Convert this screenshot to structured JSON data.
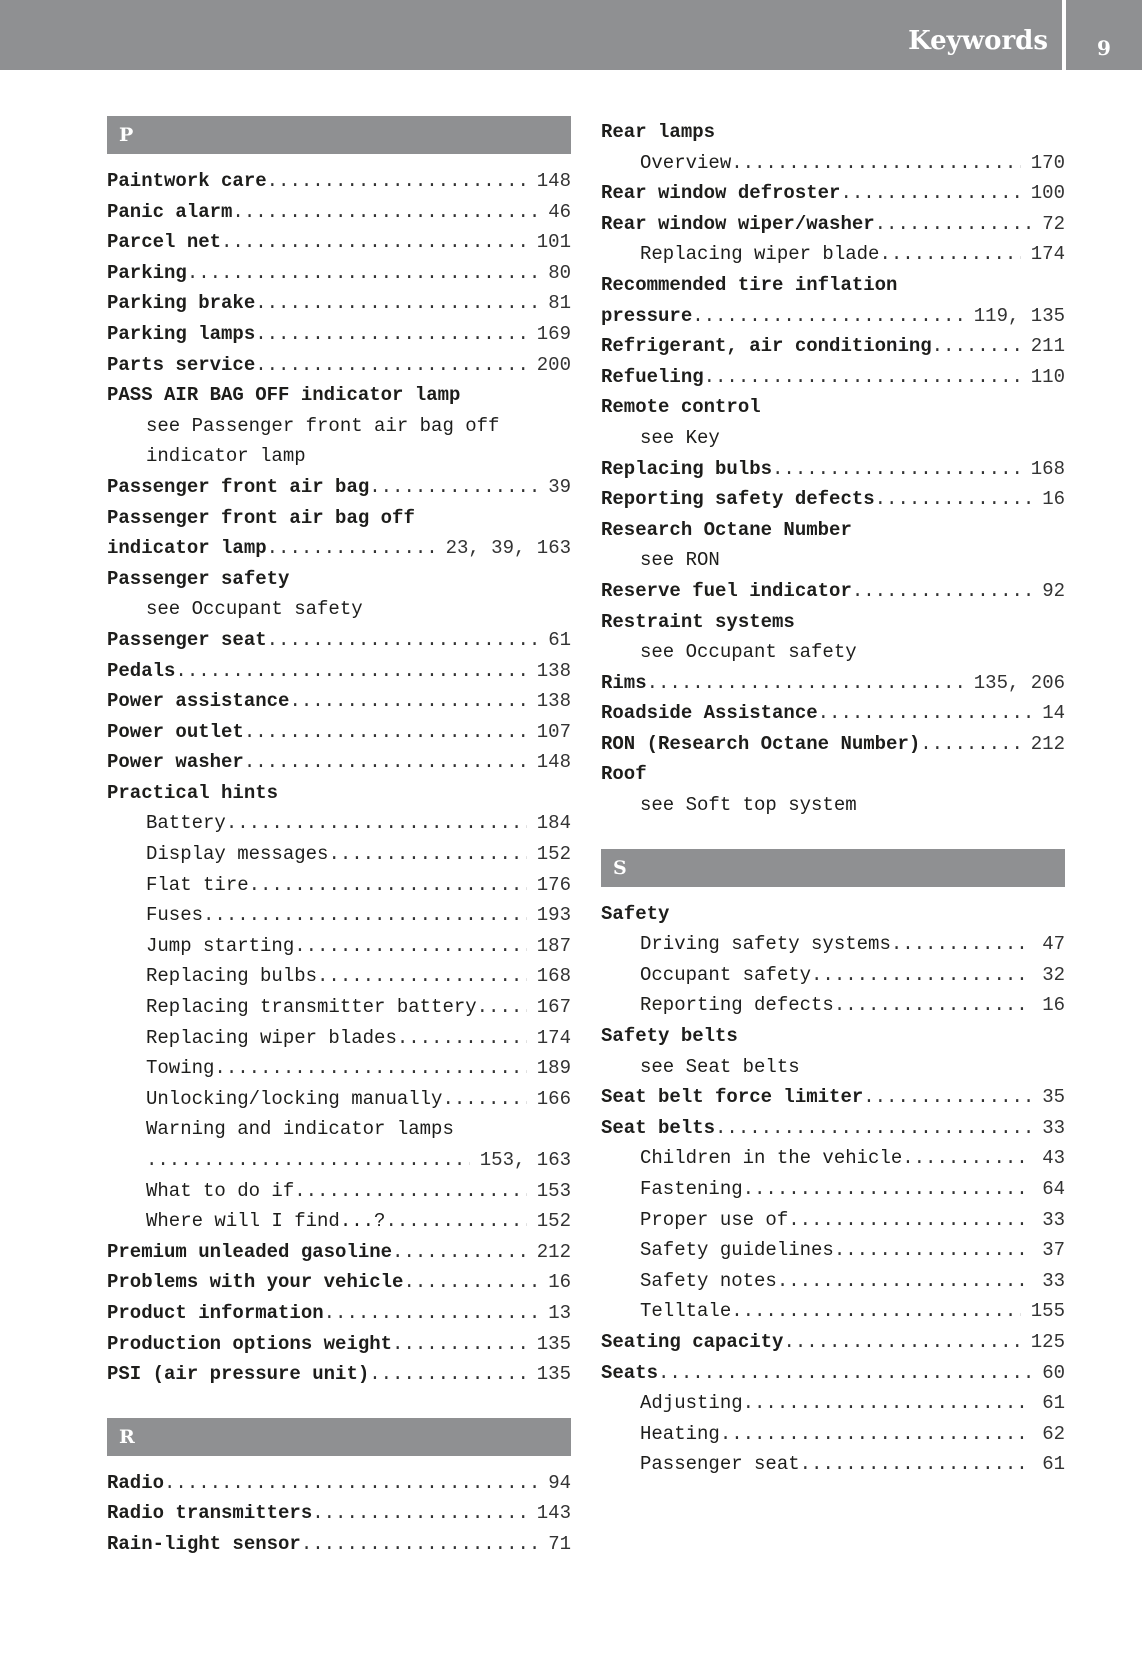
{
  "header": {
    "title": "Keywords",
    "page_number": "9"
  },
  "columns": [
    [
      {
        "t": "sec",
        "text": "P"
      },
      {
        "t": "main",
        "text": "Paintwork care",
        "page": "148"
      },
      {
        "t": "main",
        "text": "Panic alarm",
        "page": "46"
      },
      {
        "t": "main",
        "text": "Parcel net",
        "page": "101"
      },
      {
        "t": "main",
        "text": "Parking",
        "page": "80"
      },
      {
        "t": "main",
        "text": "Parking brake",
        "page": "81"
      },
      {
        "t": "main",
        "text": "Parking lamps",
        "page": "169"
      },
      {
        "t": "main",
        "text": "Parts service",
        "page": "200"
      },
      {
        "t": "main",
        "text": "PASS AIR BAG OFF indicator lamp"
      },
      {
        "t": "sub",
        "text": "see Passenger front air bag off"
      },
      {
        "t": "sub",
        "text": "indicator lamp"
      },
      {
        "t": "main",
        "text": "Passenger front air bag",
        "page": "39"
      },
      {
        "t": "main",
        "text": "Passenger front air bag off"
      },
      {
        "t": "main",
        "text": "indicator lamp",
        "page": "23, 39, 163"
      },
      {
        "t": "main",
        "text": "Passenger safety"
      },
      {
        "t": "sub",
        "text": "see Occupant safety"
      },
      {
        "t": "main",
        "text": "Passenger seat",
        "page": "61"
      },
      {
        "t": "main",
        "text": "Pedals",
        "page": "138"
      },
      {
        "t": "main",
        "text": "Power assistance",
        "page": "138"
      },
      {
        "t": "main",
        "text": "Power outlet",
        "page": "107"
      },
      {
        "t": "main",
        "text": "Power washer",
        "page": "148"
      },
      {
        "t": "main",
        "text": "Practical hints"
      },
      {
        "t": "sub",
        "text": "Battery",
        "page": "184"
      },
      {
        "t": "sub",
        "text": "Display messages",
        "page": "152"
      },
      {
        "t": "sub",
        "text": "Flat tire",
        "page": "176"
      },
      {
        "t": "sub",
        "text": "Fuses",
        "page": "193"
      },
      {
        "t": "sub",
        "text": "Jump starting",
        "page": "187"
      },
      {
        "t": "sub",
        "text": "Replacing bulbs",
        "page": "168"
      },
      {
        "t": "sub",
        "text": "Replacing transmitter battery",
        "page": "167"
      },
      {
        "t": "sub",
        "text": "Replacing wiper blades",
        "page": "174"
      },
      {
        "t": "sub",
        "text": "Towing",
        "page": "189"
      },
      {
        "t": "sub",
        "text": "Unlocking/locking manually",
        "page": "166"
      },
      {
        "t": "sub",
        "text": "Warning and indicator lamps"
      },
      {
        "t": "sub",
        "text": "",
        "page": "153, 163"
      },
      {
        "t": "sub",
        "text": "What to do if",
        "page": "153"
      },
      {
        "t": "sub",
        "text": "Where will I find...?",
        "page": "152"
      },
      {
        "t": "main",
        "text": "Premium unleaded gasoline",
        "page": "212"
      },
      {
        "t": "main",
        "text": "Problems with your vehicle",
        "page": "16"
      },
      {
        "t": "main",
        "text": "Product information",
        "page": "13"
      },
      {
        "t": "main",
        "text": "Production options weight",
        "page": "135"
      },
      {
        "t": "main",
        "text": "PSI (air pressure unit)",
        "page": "135"
      },
      {
        "t": "sec",
        "text": "R",
        "gap": true
      },
      {
        "t": "main",
        "text": "Radio",
        "page": "94"
      },
      {
        "t": "main",
        "text": "Radio transmitters",
        "page": "143"
      },
      {
        "t": "main",
        "text": "Rain-light sensor",
        "page": "71"
      }
    ],
    [
      {
        "t": "main",
        "text": "Rear lamps"
      },
      {
        "t": "sub",
        "text": "Overview",
        "page": "170"
      },
      {
        "t": "main",
        "text": "Rear window defroster",
        "page": "100"
      },
      {
        "t": "main",
        "text": "Rear window wiper/washer",
        "page": "72"
      },
      {
        "t": "sub",
        "text": "Replacing wiper blade",
        "page": "174"
      },
      {
        "t": "main",
        "text": "Recommended tire inflation"
      },
      {
        "t": "main",
        "text": "pressure",
        "page": "119, 135"
      },
      {
        "t": "main",
        "text": "Refrigerant, air conditioning",
        "page": "211"
      },
      {
        "t": "main",
        "text": "Refueling",
        "page": "110"
      },
      {
        "t": "main",
        "text": "Remote control"
      },
      {
        "t": "sub",
        "text": "see Key"
      },
      {
        "t": "main",
        "text": "Replacing bulbs",
        "page": "168"
      },
      {
        "t": "main",
        "text": "Reporting safety defects",
        "page": "16"
      },
      {
        "t": "main",
        "text": "Research Octane Number"
      },
      {
        "t": "sub",
        "text": "see RON"
      },
      {
        "t": "main",
        "text": "Reserve fuel indicator",
        "page": "92"
      },
      {
        "t": "main",
        "text": "Restraint systems"
      },
      {
        "t": "sub",
        "text": "see Occupant safety"
      },
      {
        "t": "main",
        "text": "Rims",
        "page": "135, 206"
      },
      {
        "t": "main",
        "text": "Roadside Assistance",
        "page": "14"
      },
      {
        "t": "main",
        "text": "RON (Research Octane Number)",
        "page": "212"
      },
      {
        "t": "main",
        "text": "Roof"
      },
      {
        "t": "sub",
        "text": "see Soft top system"
      },
      {
        "t": "sec",
        "text": "S",
        "gap": true
      },
      {
        "t": "main",
        "text": "Safety"
      },
      {
        "t": "sub",
        "text": "Driving safety systems",
        "page": "47"
      },
      {
        "t": "sub",
        "text": "Occupant safety",
        "page": "32"
      },
      {
        "t": "sub",
        "text": "Reporting defects",
        "page": "16"
      },
      {
        "t": "main",
        "text": "Safety belts"
      },
      {
        "t": "sub",
        "text": "see Seat belts"
      },
      {
        "t": "main",
        "text": "Seat belt force limiter",
        "page": "35"
      },
      {
        "t": "main",
        "text": "Seat belts",
        "page": "33"
      },
      {
        "t": "sub",
        "text": "Children in the vehicle",
        "page": "43"
      },
      {
        "t": "sub",
        "text": "Fastening",
        "page": "64"
      },
      {
        "t": "sub",
        "text": "Proper use of",
        "page": "33"
      },
      {
        "t": "sub",
        "text": "Safety guidelines",
        "page": "37"
      },
      {
        "t": "sub",
        "text": "Safety notes",
        "page": "33"
      },
      {
        "t": "sub",
        "text": "Telltale",
        "page": "155"
      },
      {
        "t": "main",
        "text": "Seating capacity",
        "page": "125"
      },
      {
        "t": "main",
        "text": "Seats",
        "page": "60"
      },
      {
        "t": "sub",
        "text": "Adjusting",
        "page": "61"
      },
      {
        "t": "sub",
        "text": "Heating",
        "page": "62"
      },
      {
        "t": "sub",
        "text": "Passenger seat",
        "page": "61"
      }
    ]
  ]
}
